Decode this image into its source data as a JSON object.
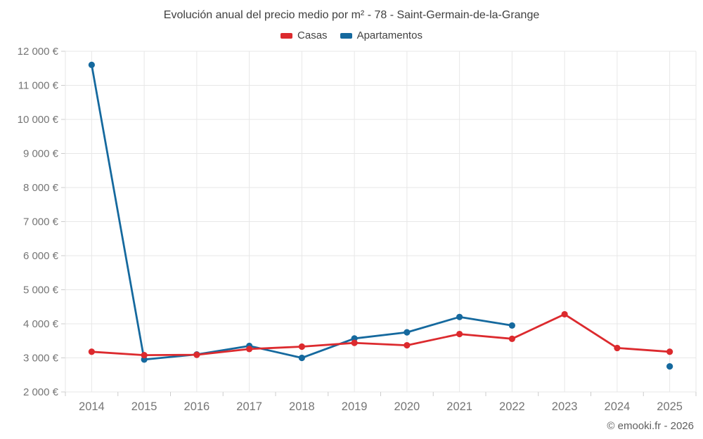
{
  "header": {
    "title": "Evolución anual del precio medio por m² - 78 - Saint-Germain-de-la-Grange"
  },
  "footer": {
    "credit": "© emooki.fr - 2026"
  },
  "colors": {
    "casas": "#dc2a2e",
    "apartamentos": "#15699e",
    "grid": "#e7e7e7",
    "axis_tick": "#cccccc",
    "axis_text": "#757575"
  },
  "chart_data": {
    "type": "line",
    "title": "Evolución anual del precio medio por m² - 78 - Saint-Germain-de-la-Grange",
    "categories": [
      "2014",
      "2015",
      "2016",
      "2017",
      "2018",
      "2019",
      "2020",
      "2021",
      "2022",
      "2023",
      "2024",
      "2025"
    ],
    "series": [
      {
        "name": "Casas",
        "color": "#dc2a2e",
        "values": [
          3180,
          3080,
          3090,
          3260,
          3330,
          3440,
          3370,
          3700,
          3560,
          4280,
          3290,
          3180
        ]
      },
      {
        "name": "Apartamentos",
        "color": "#15699e",
        "values": [
          11600,
          2950,
          3100,
          3350,
          3000,
          3570,
          3750,
          4200,
          3950,
          null,
          null,
          2750
        ]
      }
    ],
    "xlabel": "",
    "ylabel": "",
    "ylim": [
      2000,
      12000
    ],
    "ytick_step": 1000,
    "ytick_suffix": " €",
    "grid": true,
    "legend_position": "top"
  }
}
